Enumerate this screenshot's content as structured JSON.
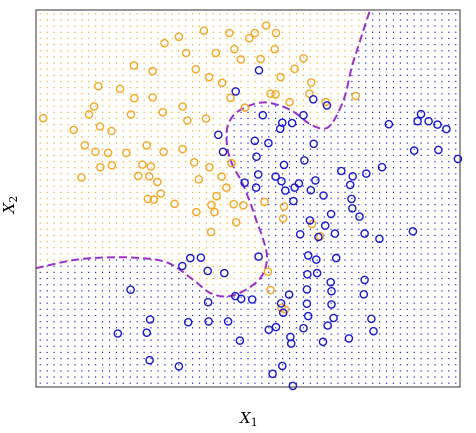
{
  "chart_data": {
    "type": "scatter",
    "xlabel": {
      "main": "X",
      "sub": "1"
    },
    "ylabel": {
      "main": "X",
      "sub": "2"
    },
    "xlim": [
      0,
      1
    ],
    "ylim": [
      0,
      1
    ],
    "colors": {
      "class_orange": "#f5a623",
      "class_blue": "#1a1acc",
      "boundary": "#9b30c8",
      "frame": "#333333"
    },
    "grid_resolution": 60,
    "series": [
      {
        "class": "orange",
        "points": [
          [
            0.303,
            0.912
          ],
          [
            0.337,
            0.929
          ],
          [
            0.396,
            0.945
          ],
          [
            0.456,
            0.939
          ],
          [
            0.516,
            0.939
          ],
          [
            0.503,
            0.925
          ],
          [
            0.543,
            0.959
          ],
          [
            0.566,
            0.939
          ],
          [
            0.354,
            0.886
          ],
          [
            0.424,
            0.886
          ],
          [
            0.468,
            0.896
          ],
          [
            0.483,
            0.869
          ],
          [
            0.563,
            0.896
          ],
          [
            0.53,
            0.87
          ],
          [
            0.631,
            0.872
          ],
          [
            0.61,
            0.844
          ],
          [
            0.231,
            0.853
          ],
          [
            0.275,
            0.838
          ],
          [
            0.377,
            0.843
          ],
          [
            0.408,
            0.822
          ],
          [
            0.439,
            0.807
          ],
          [
            0.577,
            0.822
          ],
          [
            0.649,
            0.808
          ],
          [
            0.645,
            0.778
          ],
          [
            0.147,
            0.798
          ],
          [
            0.198,
            0.791
          ],
          [
            0.232,
            0.766
          ],
          [
            0.275,
            0.768
          ],
          [
            0.137,
            0.744
          ],
          [
            0.089,
            0.682
          ],
          [
            0.125,
            0.723
          ],
          [
            0.151,
            0.691
          ],
          [
            0.178,
            0.679
          ],
          [
            0.224,
            0.723
          ],
          [
            0.299,
            0.729
          ],
          [
            0.346,
            0.744
          ],
          [
            0.357,
            0.707
          ],
          [
            0.401,
            0.712
          ],
          [
            0.459,
            0.767
          ],
          [
            0.493,
            0.741
          ],
          [
            0.553,
            0.778
          ],
          [
            0.565,
            0.776
          ],
          [
            0.598,
            0.756
          ],
          [
            0.683,
            0.756
          ],
          [
            0.754,
            0.772
          ],
          [
            0.017,
            0.713
          ],
          [
            0.115,
            0.641
          ],
          [
            0.14,
            0.624
          ],
          [
            0.17,
            0.621
          ],
          [
            0.213,
            0.621
          ],
          [
            0.261,
            0.641
          ],
          [
            0.301,
            0.624
          ],
          [
            0.251,
            0.59
          ],
          [
            0.271,
            0.585
          ],
          [
            0.241,
            0.56
          ],
          [
            0.267,
            0.559
          ],
          [
            0.107,
            0.556
          ],
          [
            0.152,
            0.583
          ],
          [
            0.179,
            0.588
          ],
          [
            0.346,
            0.631
          ],
          [
            0.373,
            0.596
          ],
          [
            0.409,
            0.583
          ],
          [
            0.384,
            0.551
          ],
          [
            0.438,
            0.558
          ],
          [
            0.461,
            0.594
          ],
          [
            0.449,
            0.529
          ],
          [
            0.426,
            0.506
          ],
          [
            0.421,
            0.464
          ],
          [
            0.466,
            0.485
          ],
          [
            0.489,
            0.482
          ],
          [
            0.539,
            0.491
          ],
          [
            0.286,
            0.544
          ],
          [
            0.294,
            0.513
          ],
          [
            0.264,
            0.499
          ],
          [
            0.278,
            0.497
          ],
          [
            0.327,
            0.486
          ],
          [
            0.378,
            0.464
          ],
          [
            0.472,
            0.437
          ],
          [
            0.414,
            0.483
          ],
          [
            0.413,
            0.411
          ],
          [
            0.583,
            0.447
          ],
          [
            0.585,
            0.479
          ],
          [
            0.651,
            0.432
          ],
          [
            0.67,
            0.4
          ],
          [
            0.547,
            0.306
          ],
          [
            0.553,
            0.257
          ],
          [
            0.579,
            0.21
          ],
          [
            0.587,
            0.206
          ]
        ]
      },
      {
        "class": "blue",
        "points": [
          [
            0.526,
            0.84
          ],
          [
            0.471,
            0.784
          ],
          [
            0.535,
            0.721
          ],
          [
            0.581,
            0.701
          ],
          [
            0.604,
            0.7
          ],
          [
            0.631,
            0.721
          ],
          [
            0.654,
            0.763
          ],
          [
            0.686,
            0.747
          ],
          [
            0.576,
            0.685
          ],
          [
            0.516,
            0.653
          ],
          [
            0.548,
            0.647
          ],
          [
            0.43,
            0.669
          ],
          [
            0.441,
            0.624
          ],
          [
            0.52,
            0.611
          ],
          [
            0.585,
            0.589
          ],
          [
            0.633,
            0.601
          ],
          [
            0.655,
            0.645
          ],
          [
            0.72,
            0.573
          ],
          [
            0.62,
            0.54
          ],
          [
            0.565,
            0.558
          ],
          [
            0.579,
            0.546
          ],
          [
            0.659,
            0.548
          ],
          [
            0.492,
            0.542
          ],
          [
            0.524,
            0.564
          ],
          [
            0.519,
            0.529
          ],
          [
            0.588,
            0.521
          ],
          [
            0.61,
            0.529
          ],
          [
            0.607,
            0.493
          ],
          [
            0.648,
            0.522
          ],
          [
            0.678,
            0.508
          ],
          [
            0.696,
            0.459
          ],
          [
            0.646,
            0.442
          ],
          [
            0.682,
            0.428
          ],
          [
            0.666,
            0.398
          ],
          [
            0.744,
            0.499
          ],
          [
            0.741,
            0.536
          ],
          [
            0.779,
            0.566
          ],
          [
            0.746,
            0.474
          ],
          [
            0.705,
            0.407
          ],
          [
            0.763,
            0.452
          ],
          [
            0.775,
            0.407
          ],
          [
            0.81,
            0.393
          ],
          [
            0.889,
            0.413
          ],
          [
            0.747,
            0.559
          ],
          [
            0.892,
            0.627
          ],
          [
            0.816,
            0.583
          ],
          [
            0.949,
            0.629
          ],
          [
            0.9,
            0.705
          ],
          [
            0.908,
            0.724
          ],
          [
            0.926,
            0.705
          ],
          [
            0.947,
            0.696
          ],
          [
            0.995,
            0.605
          ],
          [
            0.832,
            0.697
          ],
          [
            0.968,
            0.684
          ],
          [
            0.364,
            0.342
          ],
          [
            0.389,
            0.343
          ],
          [
            0.345,
            0.321
          ],
          [
            0.405,
            0.308
          ],
          [
            0.525,
            0.346
          ],
          [
            0.623,
            0.405
          ],
          [
            0.642,
            0.349
          ],
          [
            0.661,
            0.338
          ],
          [
            0.64,
            0.299
          ],
          [
            0.663,
            0.302
          ],
          [
            0.639,
            0.259
          ],
          [
            0.639,
            0.221
          ],
          [
            0.578,
            0.222
          ],
          [
            0.597,
            0.245
          ],
          [
            0.708,
            0.342
          ],
          [
            0.695,
            0.278
          ],
          [
            0.697,
            0.254
          ],
          [
            0.697,
            0.219
          ],
          [
            0.642,
            0.188
          ],
          [
            0.702,
            0.183
          ],
          [
            0.775,
            0.284
          ],
          [
            0.773,
            0.246
          ],
          [
            0.791,
            0.181
          ],
          [
            0.269,
            0.179
          ],
          [
            0.261,
            0.144
          ],
          [
            0.223,
            0.258
          ],
          [
            0.193,
            0.142
          ],
          [
            0.359,
            0.172
          ],
          [
            0.268,
            0.071
          ],
          [
            0.406,
            0.225
          ],
          [
            0.407,
            0.174
          ],
          [
            0.453,
            0.174
          ],
          [
            0.484,
            0.234
          ],
          [
            0.51,
            0.232
          ],
          [
            0.47,
            0.241
          ],
          [
            0.444,
            0.302
          ],
          [
            0.337,
            0.055
          ],
          [
            0.558,
            0.035
          ],
          [
            0.481,
            0.123
          ],
          [
            0.6,
            0.133
          ],
          [
            0.566,
            0.159
          ],
          [
            0.631,
            0.156
          ],
          [
            0.688,
            0.163
          ],
          [
            0.677,
            0.12
          ],
          [
            0.738,
            0.129
          ],
          [
            0.796,
            0.148
          ],
          [
            0.602,
            0.115
          ],
          [
            0.581,
            0.056
          ],
          [
            0.549,
            0.152
          ],
          [
            0.583,
            0.197
          ],
          [
            0.606,
            0.003
          ]
        ]
      }
    ],
    "decision_boundary": [
      [
        0.0,
        0.315
      ],
      [
        0.08,
        0.335
      ],
      [
        0.15,
        0.343
      ],
      [
        0.235,
        0.343
      ],
      [
        0.31,
        0.33
      ],
      [
        0.37,
        0.285
      ],
      [
        0.41,
        0.25
      ],
      [
        0.45,
        0.24
      ],
      [
        0.49,
        0.255
      ],
      [
        0.53,
        0.29
      ],
      [
        0.545,
        0.34
      ],
      [
        0.535,
        0.395
      ],
      [
        0.52,
        0.44
      ],
      [
        0.505,
        0.49
      ],
      [
        0.485,
        0.545
      ],
      [
        0.465,
        0.585
      ],
      [
        0.452,
        0.63
      ],
      [
        0.45,
        0.68
      ],
      [
        0.462,
        0.715
      ],
      [
        0.49,
        0.74
      ],
      [
        0.54,
        0.755
      ],
      [
        0.6,
        0.735
      ],
      [
        0.65,
        0.695
      ],
      [
        0.69,
        0.69
      ],
      [
        0.725,
        0.76
      ],
      [
        0.745,
        0.85
      ],
      [
        0.762,
        0.91
      ],
      [
        0.785,
        0.99
      ],
      [
        0.79,
        1.0
      ]
    ]
  }
}
